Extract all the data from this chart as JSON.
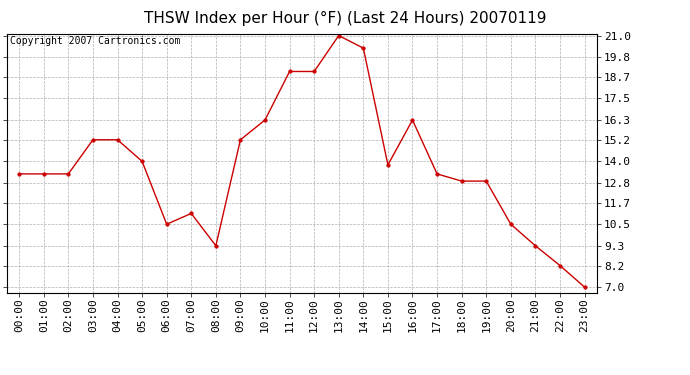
{
  "title": "THSW Index per Hour (°F) (Last 24 Hours) 20070119",
  "copyright": "Copyright 2007 Cartronics.com",
  "hours": [
    "00:00",
    "01:00",
    "02:00",
    "03:00",
    "04:00",
    "05:00",
    "06:00",
    "07:00",
    "08:00",
    "09:00",
    "10:00",
    "11:00",
    "12:00",
    "13:00",
    "14:00",
    "15:00",
    "16:00",
    "17:00",
    "18:00",
    "19:00",
    "20:00",
    "21:00",
    "22:00",
    "23:00"
  ],
  "values": [
    13.3,
    13.3,
    13.3,
    15.2,
    15.2,
    14.0,
    10.5,
    11.1,
    9.3,
    15.2,
    16.3,
    19.0,
    19.0,
    21.0,
    20.3,
    13.8,
    16.3,
    13.3,
    12.9,
    12.9,
    10.5,
    9.3,
    8.2,
    7.0
  ],
  "line_color": "#cc0000",
  "marker_color": "#cc0000",
  "bg_color": "#ffffff",
  "plot_bg_color": "#ffffff",
  "grid_color": "#b0b0b0",
  "yticks": [
    7.0,
    8.2,
    9.3,
    10.5,
    11.7,
    12.8,
    14.0,
    15.2,
    16.3,
    17.5,
    18.7,
    19.8,
    21.0
  ],
  "ymin": 7.0,
  "ymax": 21.0,
  "title_fontsize": 11,
  "copyright_fontsize": 7,
  "tick_fontsize": 8
}
